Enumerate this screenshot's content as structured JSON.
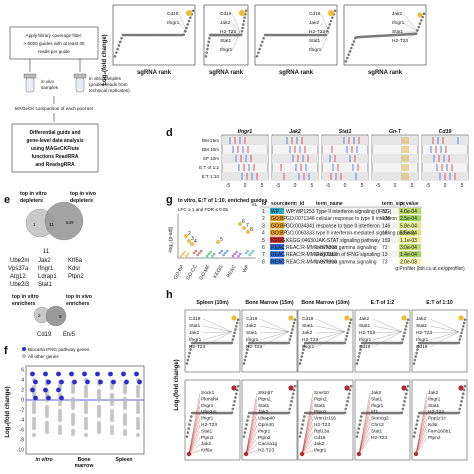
{
  "panel_letters": {
    "d": "d",
    "e": "e",
    "f": "f",
    "g": "g",
    "h": "h"
  },
  "flowchart": {
    "box1": [
      "Apply library coverage filter:",
      "> 6000 guides with at least 30",
      "reads per guide"
    ],
    "left_samples": [
      "in vivo",
      "samples"
    ],
    "right_samples": [
      "in vitro samples",
      "(pooled reads from",
      "technical replicates)"
    ],
    "compare": "MAGeCK comparison of each pool set",
    "diff": [
      "Differential guide and",
      "gene-level data analysis",
      "using MAGeCKFlute",
      "functions ReadRRA",
      "and ReadsgRRA"
    ]
  },
  "top_panels": {
    "ylabel": "Log₂(fold change)",
    "xlabel": "sgRNA rank",
    "plots": [
      {
        "labels": [
          "Cd19",
          "Ifngr1"
        ]
      },
      {
        "labels": [
          "Cd19",
          "Jak2",
          "H2-T23",
          "Stat1",
          "Ifngr1"
        ]
      },
      {
        "labels": [
          "Cd19",
          "Jak2",
          "H2-T23",
          "Stat1",
          "Ifngr1"
        ]
      },
      {
        "labels": [
          "Jak2",
          "Ifngr1",
          "Stat1",
          "H2-T23"
        ]
      }
    ]
  },
  "panel_d": {
    "genes": [
      "Ifngr1",
      "Jak2",
      "Stat1",
      "Gn-T",
      "Cd19"
    ],
    "gene_colors": [
      "#b06bd1",
      "#e0393e",
      "#e0393e",
      "#f2c230",
      "#56b04a"
    ],
    "rows": [
      "BM 15m",
      "BM 10m",
      "SP 10m",
      "E:T of 1:2",
      "E:T 1:10"
    ],
    "ticks": [
      "-5",
      "0",
      "5"
    ]
  },
  "panel_e": {
    "in_vitro_title": [
      "top in vitro",
      "depleters"
    ],
    "in_vivo_title": [
      "top in vivo",
      "depleters"
    ],
    "left_count": "1",
    "center_count": "11",
    "right_count": "549",
    "enriched_in_vitro_title": [
      "top in vitro",
      "enrichers"
    ],
    "enriched_in_vivo_title": [
      "top in vivo",
      "enrichers"
    ],
    "shared_depleters": [
      "Jak2",
      "Ifngr1"
    ],
    "vitro_only_genes": [
      "Ube2m",
      "Vps37a",
      "Atg12",
      "Ube2l3"
    ],
    "vivo_only_genes": [
      "Ktf6a",
      "Kdsr",
      "Ptpn2"
    ],
    "shared_mid": [
      "Stat1",
      "Ldrap1",
      "Stat1"
    ],
    "enricher_counts": {
      "left": "2",
      "right": "9"
    },
    "enricher_genes": [
      "Cd19",
      "Etv5"
    ]
  },
  "panel_f": {
    "legend": [
      "Biocarta IFNG pathway genes",
      "All other genes"
    ],
    "legend_colors": [
      "#2a2ad8",
      "#bbbbbb"
    ],
    "ylabel": "Log₂(fold change)",
    "yticks": [
      "6",
      "4",
      "2",
      "0",
      "-2",
      "-4",
      "-6",
      "-8",
      "-10"
    ],
    "groups": [
      "in vitro",
      "Bone",
      "Spleen"
    ],
    "group_sub": [
      "",
      "marrow",
      ""
    ]
  },
  "panel_g": {
    "title": "In vitro, E:T of 1:10, enriched guides",
    "subtitle": "LFC ≥ 1 and FDR ≤ 0.05",
    "ylabel": "-log₁₀(p-adj)",
    "x_groups": [
      "GO:BP",
      "GO:CC",
      "GO:MF",
      "KEGG",
      "REAC",
      "WP"
    ],
    "table_header": [
      "id",
      "source",
      "term_id",
      "term_name",
      "term_size",
      "p_value"
    ],
    "table_rows": [
      [
        "1",
        "WP",
        "WP:WP1253",
        "Type II interferon signaling (IFNG)",
        "37",
        "4.0e-04"
      ],
      [
        "2",
        "GO:BP",
        "GO:0071346",
        "cellular response to type II interferon",
        "128",
        "2.5e-04"
      ],
      [
        "3",
        "GO:BP",
        "GO:0034341",
        "response to type II interferon",
        "146",
        "5.8e-04"
      ],
      [
        "4",
        "GO:BP",
        "GO:0060333",
        "type II interferon-mediated signaling pathway",
        "18",
        "5.5e-04"
      ],
      [
        "5",
        "KEGG",
        "KEGG:04630",
        "JAK-STAT signaling pathway",
        "159",
        "1.1e-03"
      ],
      [
        "6",
        "REAC",
        "REAC:R-MMU-877300",
        "Interferon gamma signaling",
        "73",
        "3.0e-04"
      ],
      [
        "7",
        "REAC",
        "REAC:R-MMU-877312",
        "Regulation of IFNG signaling",
        "13",
        "1.4e-04"
      ],
      [
        "8",
        "REAC",
        "REAC:R-MMU-877300",
        "Interferon gamma signaling",
        "73",
        "2.0e-03"
      ]
    ],
    "footer": "g:Profiler (biit.cs.ut.ee/gprofiler)",
    "side_label": "e1"
  },
  "panel_h": {
    "titles": [
      "Spleen (10m)",
      "Bone Marrow (15m)",
      "Bone Marrow (10m)",
      "E:T of 1:2",
      "E:T of 1:10"
    ],
    "ylabel": "Log₂(fold change)",
    "top_labels": [
      [
        "Cd19",
        "Stat1",
        "Jak2",
        "Ifngr1",
        "H2-T23"
      ],
      [
        "Cd19",
        "Jak2",
        "Stat1",
        "Ifngr1",
        "H2-T23"
      ],
      [
        "Cd19",
        "Stat1",
        "Jak2",
        "H2-T23",
        "Ifngr1"
      ],
      [
        "Jak2",
        "Stat1",
        "H2-T23",
        "Ifngr1",
        "Cd19"
      ],
      [
        "Jak2",
        "Stat1",
        "H2-T23",
        "Ifngr1",
        "Cd19"
      ]
    ],
    "bottom_labels": [
      [
        "Sock1",
        "Pkmoh4",
        "Ifngr1",
        "Ube2m",
        "Ifngr1",
        "H2-T23",
        "Stat1",
        "Ptpn2",
        "Jak2",
        "Ktf6a"
      ],
      [
        "Stkn67",
        "Ptpn2",
        "Stat1",
        "Jak2",
        "Ubap40",
        "Gpm40",
        "Ifngr1",
        "Ptpn2",
        "Cacna1g",
        "H2-T23"
      ],
      [
        "Snel10",
        "Ptpn2",
        "Stat1",
        "Ptpn2",
        "Vmn1r116",
        "H2-T23",
        "Rpl13a",
        "Cd19",
        "Jak2",
        "Ifngr1"
      ],
      [
        "Jak2",
        "Stat1",
        "Ifngr1",
        "Irf1",
        "Stoncg2",
        "Chrc2",
        "Stat1",
        "H2-T23"
      ],
      [
        "Jak2",
        "Ifngr1",
        "Stat1",
        "H2-T23",
        "Ppp1r1c",
        "Kdsr",
        "Fam160b1",
        "Ptpn2"
      ]
    ]
  },
  "colors": {
    "grey_points": "#7a7a7a",
    "highlight_orange": "#f5b82e",
    "highlight_red": "#b52a2a",
    "blue_points": "#2a2ad8"
  }
}
